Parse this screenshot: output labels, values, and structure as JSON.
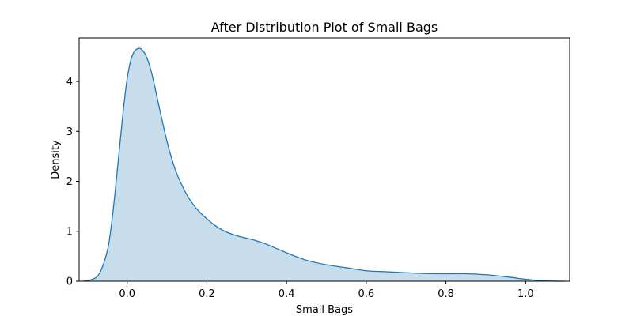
{
  "chart_data": {
    "type": "area",
    "title": "After Distribution Plot of Small Bags",
    "xlabel": "Small Bags",
    "ylabel": "Density",
    "xlim": [
      -0.1205,
      1.1105
    ],
    "ylim": [
      0,
      4.87
    ],
    "x_ticks": [
      0.0,
      0.2,
      0.4,
      0.6,
      0.8,
      1.0
    ],
    "y_ticks": [
      0,
      1,
      2,
      3,
      4
    ],
    "grid": false,
    "colors": {
      "line": "#1f77b4",
      "fill": "#1f77b4",
      "fill_opacity": 0.25
    },
    "series": [
      {
        "x": [
          -0.11,
          -0.09,
          -0.07,
          -0.05,
          -0.04,
          -0.03,
          -0.02,
          -0.01,
          0.0,
          0.01,
          0.02,
          0.03,
          0.035,
          0.045,
          0.055,
          0.065,
          0.08,
          0.1,
          0.12,
          0.14,
          0.16,
          0.18,
          0.2,
          0.22,
          0.24,
          0.26,
          0.28,
          0.3,
          0.32,
          0.35,
          0.4,
          0.45,
          0.5,
          0.55,
          0.6,
          0.65,
          0.7,
          0.75,
          0.8,
          0.85,
          0.9,
          0.95,
          0.98,
          1.0,
          1.03,
          1.06,
          1.1
        ],
        "y": [
          0.0,
          0.03,
          0.15,
          0.6,
          1.1,
          1.8,
          2.6,
          3.4,
          4.05,
          4.45,
          4.62,
          4.66,
          4.65,
          4.55,
          4.35,
          4.05,
          3.5,
          2.8,
          2.25,
          1.88,
          1.6,
          1.4,
          1.25,
          1.12,
          1.02,
          0.95,
          0.9,
          0.86,
          0.82,
          0.74,
          0.57,
          0.42,
          0.33,
          0.27,
          0.21,
          0.19,
          0.17,
          0.155,
          0.15,
          0.15,
          0.13,
          0.09,
          0.06,
          0.04,
          0.015,
          0.003,
          0.0
        ]
      }
    ]
  }
}
